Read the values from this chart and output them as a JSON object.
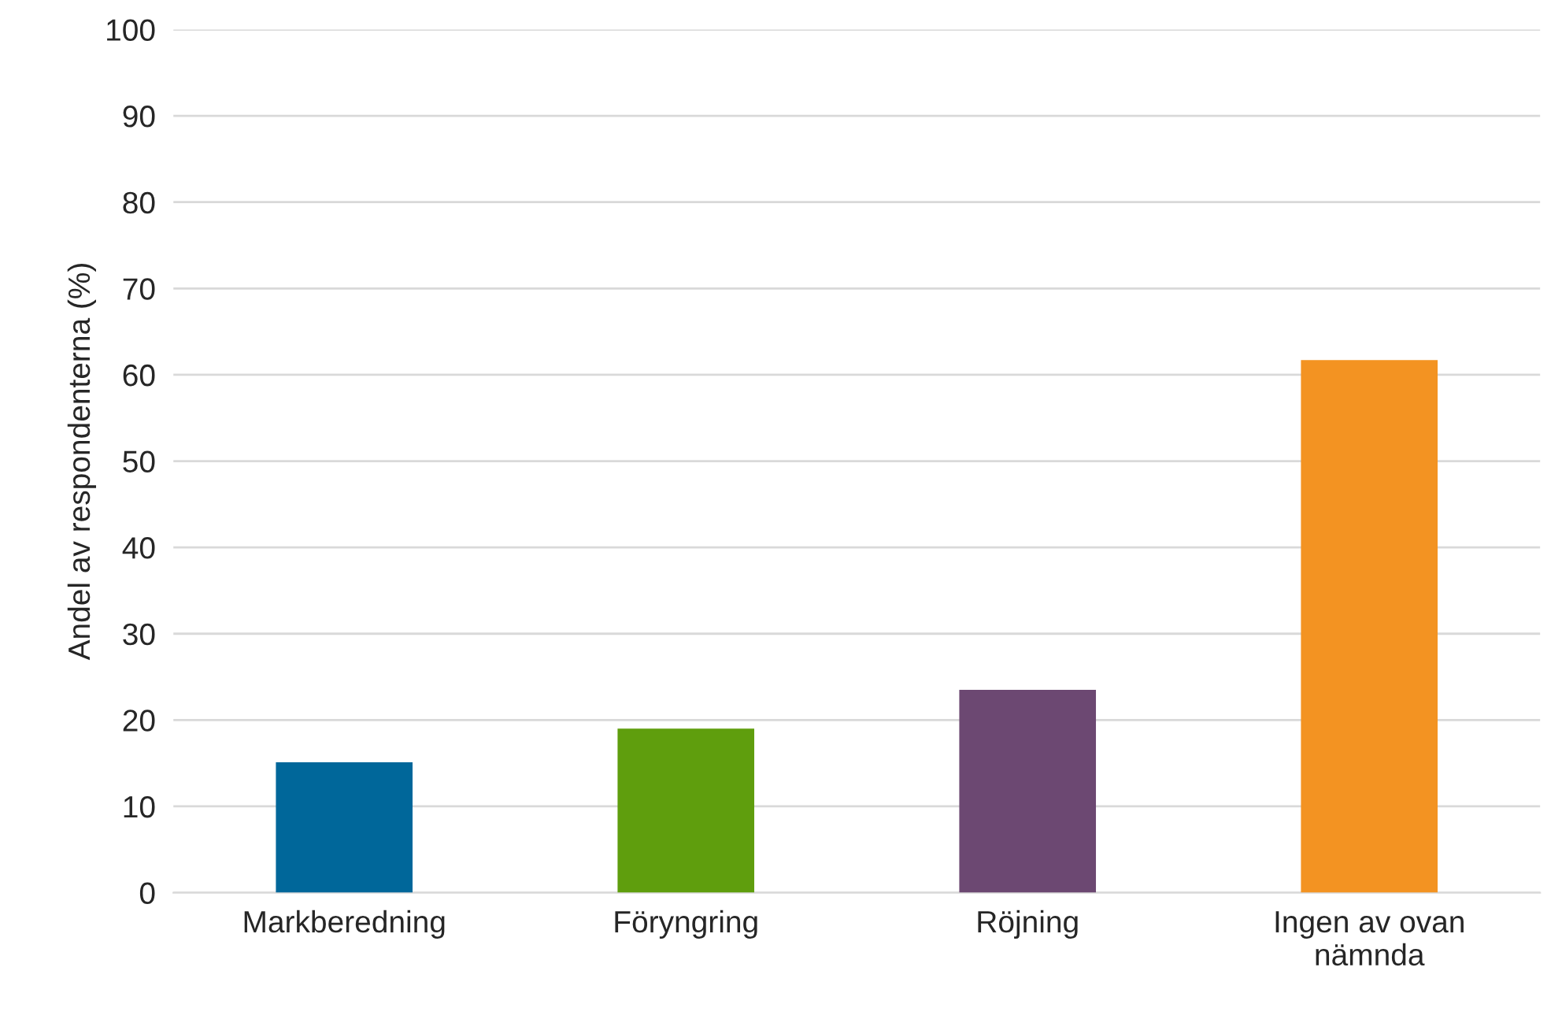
{
  "chart_data": {
    "type": "bar",
    "ylabel": "Andel av respondenterna (%)",
    "categories": [
      "Markberedning",
      "Föryngring",
      "Röjning",
      "Ingen av ovan\nnämnda"
    ],
    "values": [
      15.1,
      19.0,
      23.5,
      61.7
    ],
    "colors": [
      "#00679a",
      "#5f9e0d",
      "#6c4872",
      "#f39322"
    ],
    "ylim": [
      0,
      100
    ],
    "yticks": [
      0,
      10,
      20,
      30,
      40,
      50,
      60,
      70,
      80,
      90,
      100
    ],
    "grid": "y",
    "legend": false
  }
}
